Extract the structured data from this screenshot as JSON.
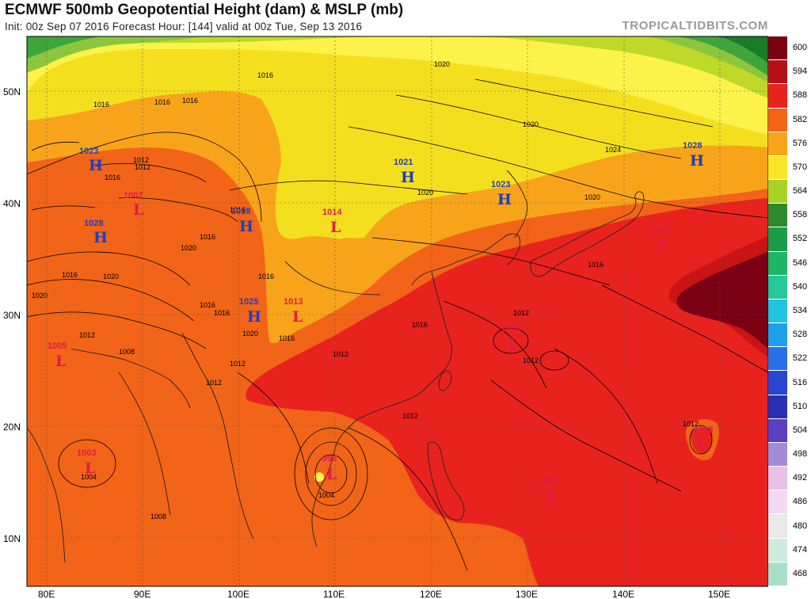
{
  "title": "ECMWF 500mb Geopotential Height (dam) & MSLP (mb)",
  "subtitle": "Init: 00z Sep 07 2016   Forecast Hour: [144]   valid at 00z Tue, Sep 13 2016",
  "brand": "TROPICALTIDBITS.COM",
  "colors": {
    "h600": "#7a0014",
    "h594": "#c81414",
    "h588": "#e8231e",
    "h582": "#f26418",
    "h576": "#f8a41b",
    "h570": "#f4df1f",
    "h564": "#fbf24a",
    "h558": "#bfd82a",
    "h552": "#8cc63e",
    "h546": "#3ea53a",
    "h540": "#1b7c28"
  },
  "legend": [
    {
      "label": "600",
      "color": "#7a0014"
    },
    {
      "label": "594",
      "color": "#b4101a"
    },
    {
      "label": "588",
      "color": "#e8231e"
    },
    {
      "label": "582",
      "color": "#f26418"
    },
    {
      "label": "576",
      "color": "#f8a41b"
    },
    {
      "label": "570",
      "color": "#fbe529"
    },
    {
      "label": "564",
      "color": "#a8d12a"
    },
    {
      "label": "558",
      "color": "#2d8a2d"
    },
    {
      "label": "552",
      "color": "#1a9c48"
    },
    {
      "label": "546",
      "color": "#20b466"
    },
    {
      "label": "540",
      "color": "#26c79b"
    },
    {
      "label": "534",
      "color": "#23c3df"
    },
    {
      "label": "528",
      "color": "#1ca0ec"
    },
    {
      "label": "522",
      "color": "#2a6fe6"
    },
    {
      "label": "516",
      "color": "#2a45cf"
    },
    {
      "label": "510",
      "color": "#2b2fb2"
    },
    {
      "label": "504",
      "color": "#5b3fbf"
    },
    {
      "label": "498",
      "color": "#a48bd8"
    },
    {
      "label": "492",
      "color": "#e8c0e8"
    },
    {
      "label": "486",
      "color": "#f3d9f3"
    },
    {
      "label": "480",
      "color": "#e9e9e9"
    },
    {
      "label": "474",
      "color": "#cdebdc"
    },
    {
      "label": "468",
      "color": "#a6e0c6"
    }
  ],
  "axes": {
    "lat": [
      "50N",
      "40N",
      "30N",
      "20N",
      "10N"
    ],
    "lon": [
      "80E",
      "90E",
      "100E",
      "110E",
      "120E",
      "130E",
      "140E",
      "150E"
    ]
  },
  "pressure_centers": [
    {
      "type": "H",
      "value": "1023",
      "name": "h-1023-west"
    },
    {
      "type": "H",
      "value": "1028",
      "name": "h-1028-west"
    },
    {
      "type": "L",
      "value": "1007",
      "name": "l-1007"
    },
    {
      "type": "H",
      "value": "1018",
      "name": "h-1018"
    },
    {
      "type": "L",
      "value": "1014",
      "name": "l-1014"
    },
    {
      "type": "H",
      "value": "1021",
      "name": "h-1021"
    },
    {
      "type": "H",
      "value": "1023",
      "name": "h-1023-korea"
    },
    {
      "type": "H",
      "value": "1028",
      "name": "h-1028-east"
    },
    {
      "type": "L",
      "value": "1015",
      "name": "l-1015"
    },
    {
      "type": "H",
      "value": "1025",
      "name": "h-1025"
    },
    {
      "type": "L",
      "value": "1013",
      "name": "l-1013"
    },
    {
      "type": "L",
      "value": "1005",
      "name": "l-1005"
    },
    {
      "type": "L",
      "value": "1009",
      "name": "l-1009"
    },
    {
      "type": "L",
      "value": "1003",
      "name": "l-1003"
    },
    {
      "type": "L",
      "value": "996",
      "name": "l-996"
    },
    {
      "type": "L",
      "value": "1011",
      "name": "l-1011"
    },
    {
      "type": "L",
      "value": "1008",
      "name": "l-1008"
    }
  ],
  "isobar_labels": [
    "1016",
    "1016",
    "1016",
    "1020",
    "1024",
    "1020",
    "1020",
    "1020",
    "1016",
    "1012",
    "1012",
    "1016",
    "1020",
    "1016",
    "1016",
    "1012",
    "1012",
    "1008",
    "1004",
    "1004",
    "1008",
    "1012",
    "1016",
    "1012",
    "1012",
    "1016",
    "1020",
    "1012",
    "1016",
    "1016",
    "1020",
    "1016",
    "1020",
    "1016",
    "1012",
    "1016",
    "1012"
  ]
}
